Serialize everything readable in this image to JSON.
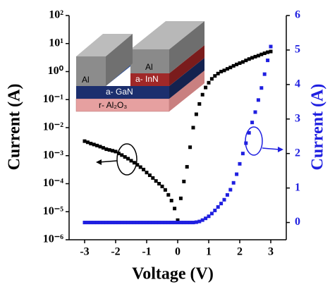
{
  "chart_data": {
    "type": "scatter",
    "xlabel": "Voltage (V)",
    "ylabel": "Current (A)",
    "y2label": "Current (A)",
    "annotations": [
      "Al",
      "Al",
      "a- InN",
      "a- GaN",
      "r- Al₂O₃"
    ],
    "x": [
      -3,
      -2.9,
      -2.8,
      -2.7,
      -2.6,
      -2.5,
      -2.4,
      -2.3,
      -2.2,
      -2.1,
      -2,
      -1.9,
      -1.8,
      -1.7,
      -1.6,
      -1.5,
      -1.4,
      -1.3,
      -1.2,
      -1.1,
      -1,
      -0.9,
      -0.8,
      -0.7,
      -0.6,
      -0.5,
      -0.4,
      -0.3,
      -0.2,
      -0.1,
      0,
      0.1,
      0.2,
      0.3,
      0.4,
      0.5,
      0.6,
      0.7,
      0.8,
      0.9,
      1,
      1.1,
      1.2,
      1.3,
      1.4,
      1.5,
      1.6,
      1.7,
      1.8,
      1.9,
      2,
      2.1,
      2.2,
      2.3,
      2.4,
      2.5,
      2.6,
      2.7,
      2.8,
      2.9,
      3
    ],
    "series": [
      {
        "color": "#000000",
        "axis": "y",
        "values": [
          0.0033,
          0.003,
          0.0027,
          0.0025,
          0.0023,
          0.0021,
          0.0019,
          0.0017,
          0.0016,
          0.0015,
          0.0014,
          0.0012,
          0.00105,
          0.0009,
          0.00078,
          0.00066,
          0.00056,
          0.00047,
          0.00039,
          0.00032,
          0.00025,
          0.0002,
          0.00016,
          0.000125,
          0.0001,
          8e-05,
          6e-05,
          4e-05,
          2.5e-05,
          1.3e-05,
          5e-06,
          3e-05,
          0.00012,
          0.0004,
          0.002,
          0.01,
          0.03,
          0.07,
          0.15,
          0.27,
          0.4,
          0.55,
          0.7,
          0.85,
          1,
          1.1,
          1.25,
          1.4,
          1.6,
          1.8,
          2,
          2.2,
          2.5,
          2.8,
          3.1,
          3.4,
          3.7,
          4.1,
          4.5,
          4.9,
          5.2
        ]
      },
      {
        "color": "#1f1fe0",
        "axis": "y2",
        "values": [
          0,
          0,
          0,
          0,
          0,
          0,
          0,
          0,
          0,
          0,
          0,
          0,
          0,
          0,
          0,
          0,
          0,
          0,
          0,
          0,
          0,
          0,
          0,
          0,
          0,
          0,
          0,
          0,
          0,
          0,
          0,
          0,
          0,
          0,
          0,
          0,
          0.01,
          0.03,
          0.07,
          0.12,
          0.18,
          0.26,
          0.35,
          0.45,
          0.55,
          0.66,
          0.8,
          0.95,
          1.15,
          1.4,
          1.7,
          2,
          2.3,
          2.6,
          2.9,
          3.2,
          3.55,
          3.9,
          4.3,
          4.7,
          5.1
        ]
      }
    ],
    "xlim": [
      -3.5,
      3.5
    ],
    "xticks": [
      -3,
      -2,
      -1,
      0,
      1,
      2,
      3
    ],
    "ylim": [
      1e-06,
      100
    ],
    "ylog": true,
    "yticks": [
      {
        "value": 1e-06,
        "label": "10⁻⁶"
      },
      {
        "value": 1e-05,
        "label": "10⁻⁵"
      },
      {
        "value": 0.0001,
        "label": "10⁻⁴"
      },
      {
        "value": 0.001,
        "label": "10⁻³"
      },
      {
        "value": 0.01,
        "label": "10⁻²"
      },
      {
        "value": 0.1,
        "label": "10⁻¹"
      },
      {
        "value": 1,
        "label": "10⁰"
      },
      {
        "value": 10,
        "label": "10¹"
      },
      {
        "value": 100,
        "label": "10²"
      }
    ],
    "y2lim": [
      -0.5,
      6
    ],
    "y2ticks": [
      0,
      1,
      2,
      3,
      4,
      5,
      6
    ],
    "y2color": "#1f1fe0"
  }
}
